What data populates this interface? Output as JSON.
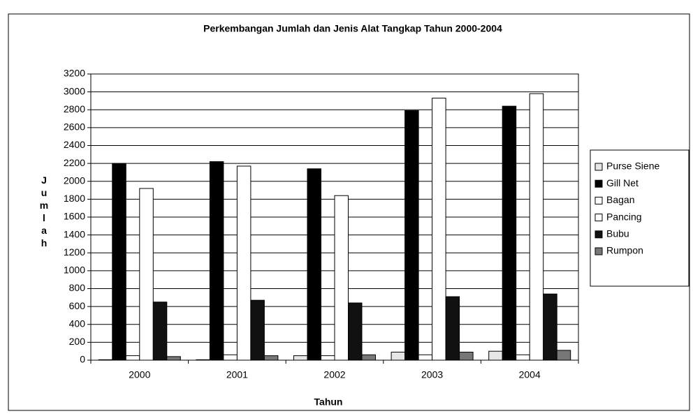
{
  "chart_data": {
    "type": "bar",
    "title": "Perkembangan Jumlah dan Jenis Alat Tangkap Tahun 2000-2004",
    "x_label": "Tahun",
    "y_label": "Jumlah",
    "categories": [
      "2000",
      "2001",
      "2002",
      "2003",
      "2004"
    ],
    "series": [
      {
        "name": "Purse Siene",
        "color": "#e6e6e6",
        "values": [
          5,
          5,
          50,
          90,
          100
        ]
      },
      {
        "name": "Gill Net",
        "color": "#000000",
        "values": [
          2200,
          2220,
          2140,
          2790,
          2840
        ]
      },
      {
        "name": "Bagan",
        "color": "#ffffff",
        "values": [
          50,
          60,
          50,
          60,
          60
        ]
      },
      {
        "name": "Pancing",
        "color": "#ffffff",
        "values": [
          1920,
          2170,
          1840,
          2930,
          2980
        ]
      },
      {
        "name": "Bubu",
        "color": "#111111",
        "values": [
          650,
          670,
          640,
          710,
          740
        ]
      },
      {
        "name": "Rumpon",
        "color": "#777777",
        "values": [
          40,
          50,
          60,
          90,
          110
        ]
      }
    ],
    "ylim": [
      0,
      3200
    ],
    "yticks": [
      0,
      200,
      400,
      600,
      800,
      1000,
      1200,
      1400,
      1600,
      1800,
      2000,
      2200,
      2400,
      2600,
      2800,
      3000,
      3200
    ],
    "grid": true,
    "legend": "right"
  }
}
